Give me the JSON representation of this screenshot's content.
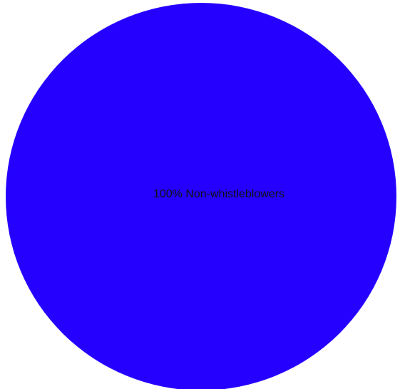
{
  "chart_data": {
    "type": "pie",
    "title": "",
    "slices": [
      {
        "label": "100% Non-whistleblowers",
        "name": "Non-whistleblowers",
        "percent": 100,
        "color": "#2600ff"
      }
    ],
    "legend": "none"
  }
}
